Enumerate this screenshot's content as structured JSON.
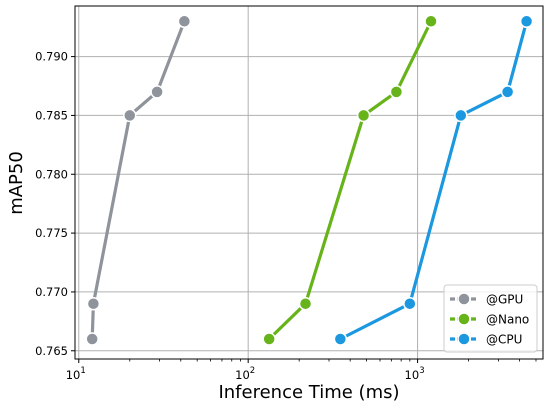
{
  "chart_data": {
    "type": "line",
    "title": "",
    "xlabel": "Inference Time (ms)",
    "ylabel": "mAP50",
    "x_scale": "log",
    "xlim": [
      9.5,
      5500
    ],
    "ylim": [
      0.7643,
      0.7943
    ],
    "x_ticks": [
      {
        "value": 10,
        "base": "10",
        "exp": "1"
      },
      {
        "value": 100,
        "base": "10",
        "exp": "2"
      },
      {
        "value": 1000,
        "base": "10",
        "exp": "3"
      }
    ],
    "y_ticks": [
      {
        "value": 0.765,
        "label": "0.765"
      },
      {
        "value": 0.77,
        "label": "0.770"
      },
      {
        "value": 0.775,
        "label": "0.775"
      },
      {
        "value": 0.78,
        "label": "0.780"
      },
      {
        "value": 0.785,
        "label": "0.785"
      },
      {
        "value": 0.79,
        "label": "0.790"
      }
    ],
    "grid": true,
    "legend_position": "lower right",
    "series": [
      {
        "name": "@GPU",
        "color": "#8e939c",
        "x": [
          12,
          12.2,
          20,
          29,
          42
        ],
        "y": [
          0.766,
          0.769,
          0.785,
          0.787,
          0.793
        ]
      },
      {
        "name": "@Nano",
        "color": "#66b31a",
        "x": [
          133,
          218,
          480,
          750,
          1200
        ],
        "y": [
          0.766,
          0.769,
          0.785,
          0.787,
          0.793
        ]
      },
      {
        "name": "@CPU",
        "color": "#1b98e0",
        "x": [
          350,
          900,
          1800,
          3400,
          4400
        ],
        "y": [
          0.766,
          0.769,
          0.785,
          0.787,
          0.793
        ]
      }
    ]
  }
}
